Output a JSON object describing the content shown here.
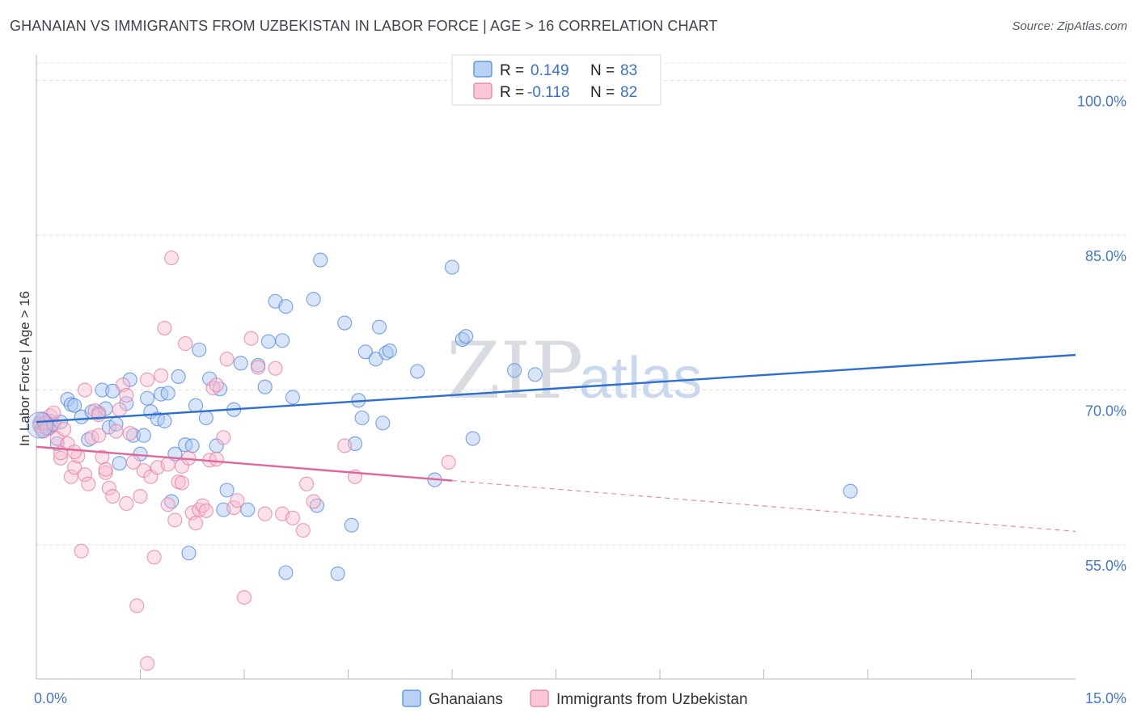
{
  "title": "GHANAIAN VS IMMIGRANTS FROM UZBEKISTAN IN LABOR FORCE | AGE > 16 CORRELATION CHART",
  "source": "Source: ZipAtlas.com",
  "watermark": {
    "zip": "ZIP",
    "atlas": "atlas"
  },
  "chart_data": {
    "type": "scatter",
    "xlabel": "",
    "ylabel": "In Labor Force | Age > 16",
    "xlim": [
      0.0,
      15.0
    ],
    "ylim": [
      42.0,
      102.0
    ],
    "x_tick_labels": [
      {
        "value": 0.0,
        "label": "0.0%"
      },
      {
        "value": 15.0,
        "label": "15.0%"
      }
    ],
    "y_ticks": [
      {
        "value": 55.0,
        "label": "55.0%"
      },
      {
        "value": 70.0,
        "label": "70.0%"
      },
      {
        "value": 85.0,
        "label": "85.0%"
      },
      {
        "value": 100.0,
        "label": "100.0%"
      }
    ],
    "x_minor_ticks": [
      1.5,
      3.0,
      4.5,
      6.0,
      7.5,
      9.0,
      10.5,
      12.0,
      13.5
    ],
    "grid": true,
    "legend_stats": [
      {
        "r_label": "R =",
        "r_value": "0.149",
        "n_label": "N =",
        "n_value": "83"
      },
      {
        "r_label": "R =",
        "r_value": "-0.118",
        "n_label": "N =",
        "n_value": "82"
      }
    ],
    "series": [
      {
        "name": "Ghanaians",
        "color": "#4a86e0",
        "fill": "#a8c6f0",
        "trend": {
          "x0": 0.0,
          "y0": 66.9,
          "x1": 15.0,
          "y1": 73.4,
          "dash_from": null
        },
        "points": [
          [
            0.05,
            66.8
          ],
          [
            0.08,
            66.2
          ],
          [
            0.1,
            67.1
          ],
          [
            0.12,
            66.5
          ],
          [
            0.15,
            66.9
          ],
          [
            0.18,
            66.3
          ],
          [
            0.2,
            67.0
          ],
          [
            0.22,
            66.6
          ],
          [
            0.3,
            64.8
          ],
          [
            0.35,
            66.9
          ],
          [
            0.45,
            69.1
          ],
          [
            0.5,
            68.6
          ],
          [
            0.55,
            68.5
          ],
          [
            0.65,
            67.4
          ],
          [
            0.75,
            65.2
          ],
          [
            0.8,
            67.9
          ],
          [
            0.9,
            67.8
          ],
          [
            0.95,
            70.0
          ],
          [
            1.0,
            68.2
          ],
          [
            1.05,
            66.4
          ],
          [
            1.1,
            69.9
          ],
          [
            1.15,
            66.7
          ],
          [
            1.2,
            62.9
          ],
          [
            1.3,
            68.7
          ],
          [
            1.35,
            71.0
          ],
          [
            1.4,
            65.6
          ],
          [
            1.5,
            63.8
          ],
          [
            1.55,
            65.6
          ],
          [
            1.6,
            69.2
          ],
          [
            1.65,
            67.9
          ],
          [
            1.75,
            67.2
          ],
          [
            1.8,
            69.6
          ],
          [
            1.85,
            67.0
          ],
          [
            1.9,
            69.7
          ],
          [
            1.95,
            59.2
          ],
          [
            2.0,
            63.8
          ],
          [
            2.05,
            71.3
          ],
          [
            2.15,
            64.7
          ],
          [
            2.2,
            54.2
          ],
          [
            2.25,
            64.6
          ],
          [
            2.3,
            68.5
          ],
          [
            2.35,
            73.9
          ],
          [
            2.45,
            67.3
          ],
          [
            2.5,
            71.1
          ],
          [
            2.6,
            64.6
          ],
          [
            2.65,
            70.1
          ],
          [
            2.7,
            58.4
          ],
          [
            2.75,
            60.3
          ],
          [
            2.85,
            68.1
          ],
          [
            2.95,
            72.6
          ],
          [
            3.05,
            58.4
          ],
          [
            3.2,
            72.4
          ],
          [
            3.3,
            70.3
          ],
          [
            3.35,
            74.7
          ],
          [
            3.45,
            78.6
          ],
          [
            3.55,
            74.8
          ],
          [
            3.6,
            78.1
          ],
          [
            3.7,
            69.3
          ],
          [
            4.0,
            78.8
          ],
          [
            4.05,
            58.8
          ],
          [
            4.1,
            82.6
          ],
          [
            4.35,
            52.2
          ],
          [
            4.45,
            76.5
          ],
          [
            4.55,
            56.9
          ],
          [
            4.6,
            64.8
          ],
          [
            4.65,
            69.0
          ],
          [
            4.75,
            73.7
          ],
          [
            4.7,
            67.3
          ],
          [
            4.9,
            73.0
          ],
          [
            5.05,
            73.6
          ],
          [
            4.95,
            76.1
          ],
          [
            5.1,
            73.8
          ],
          [
            5.0,
            66.8
          ],
          [
            5.5,
            71.8
          ],
          [
            5.75,
            61.3
          ],
          [
            6.0,
            81.9
          ],
          [
            6.15,
            74.9
          ],
          [
            6.2,
            75.2
          ],
          [
            6.3,
            65.3
          ],
          [
            6.9,
            71.9
          ],
          [
            7.2,
            71.5
          ],
          [
            11.75,
            60.2
          ],
          [
            3.6,
            52.3
          ]
        ]
      },
      {
        "name": "Immigrants from Uzbekistan",
        "color": "#e87aa0",
        "fill": "#f6bcd0",
        "trend": {
          "x0": 0.0,
          "y0": 64.5,
          "x1": 15.0,
          "y1": 56.3,
          "dash_from": 6.0
        },
        "points": [
          [
            0.05,
            66.5
          ],
          [
            0.08,
            67.2
          ],
          [
            0.1,
            66.0
          ],
          [
            0.12,
            66.8
          ],
          [
            0.15,
            66.3
          ],
          [
            0.2,
            67.5
          ],
          [
            0.25,
            66.7
          ],
          [
            0.3,
            65.3
          ],
          [
            0.35,
            63.4
          ],
          [
            0.4,
            66.2
          ],
          [
            0.45,
            64.8
          ],
          [
            0.5,
            61.6
          ],
          [
            0.55,
            62.5
          ],
          [
            0.6,
            63.6
          ],
          [
            0.65,
            54.4
          ],
          [
            0.7,
            61.8
          ],
          [
            0.75,
            60.9
          ],
          [
            0.8,
            65.4
          ],
          [
            0.85,
            68.0
          ],
          [
            0.9,
            67.6
          ],
          [
            0.95,
            63.5
          ],
          [
            1.0,
            62.0
          ],
          [
            1.05,
            60.5
          ],
          [
            1.1,
            59.7
          ],
          [
            1.15,
            66.0
          ],
          [
            1.2,
            68.1
          ],
          [
            1.25,
            70.5
          ],
          [
            1.3,
            69.5
          ],
          [
            1.35,
            65.8
          ],
          [
            1.4,
            63.0
          ],
          [
            1.45,
            49.1
          ],
          [
            1.5,
            59.7
          ],
          [
            1.55,
            62.2
          ],
          [
            1.6,
            71.0
          ],
          [
            1.65,
            61.6
          ],
          [
            1.7,
            53.8
          ],
          [
            1.75,
            62.5
          ],
          [
            1.8,
            71.4
          ],
          [
            1.85,
            76.0
          ],
          [
            1.9,
            58.9
          ],
          [
            1.95,
            82.8
          ],
          [
            2.0,
            57.4
          ],
          [
            2.05,
            61.1
          ],
          [
            2.1,
            62.6
          ],
          [
            2.15,
            74.5
          ],
          [
            2.2,
            63.4
          ],
          [
            2.25,
            58.1
          ],
          [
            2.3,
            57.1
          ],
          [
            2.35,
            58.4
          ],
          [
            2.4,
            58.8
          ],
          [
            2.45,
            58.3
          ],
          [
            2.5,
            63.2
          ],
          [
            2.55,
            70.2
          ],
          [
            2.6,
            70.5
          ],
          [
            2.7,
            65.4
          ],
          [
            2.75,
            73.0
          ],
          [
            2.85,
            58.6
          ],
          [
            2.9,
            59.3
          ],
          [
            3.0,
            49.9
          ],
          [
            3.1,
            75.0
          ],
          [
            3.2,
            72.2
          ],
          [
            3.45,
            72.1
          ],
          [
            3.55,
            58.0
          ],
          [
            3.7,
            57.6
          ],
          [
            3.85,
            56.4
          ],
          [
            3.9,
            60.9
          ],
          [
            4.0,
            59.2
          ],
          [
            4.45,
            64.6
          ],
          [
            4.6,
            61.6
          ],
          [
            5.95,
            63.0
          ],
          [
            1.6,
            43.5
          ],
          [
            0.35,
            63.9
          ],
          [
            0.55,
            64.0
          ],
          [
            0.7,
            70.0
          ],
          [
            0.9,
            65.6
          ],
          [
            1.0,
            62.3
          ],
          [
            1.3,
            59.0
          ],
          [
            1.9,
            62.8
          ],
          [
            2.1,
            61.0
          ],
          [
            2.6,
            63.3
          ],
          [
            3.3,
            58.0
          ],
          [
            0.25,
            67.8
          ]
        ]
      }
    ]
  },
  "legend": {
    "items": [
      {
        "label": "Ghanaians",
        "color": "#4a86e0",
        "fill": "#b9d1f3"
      },
      {
        "label": "Immigrants from Uzbekistan",
        "color": "#e87aa0",
        "fill": "#f8c8d8"
      }
    ]
  }
}
